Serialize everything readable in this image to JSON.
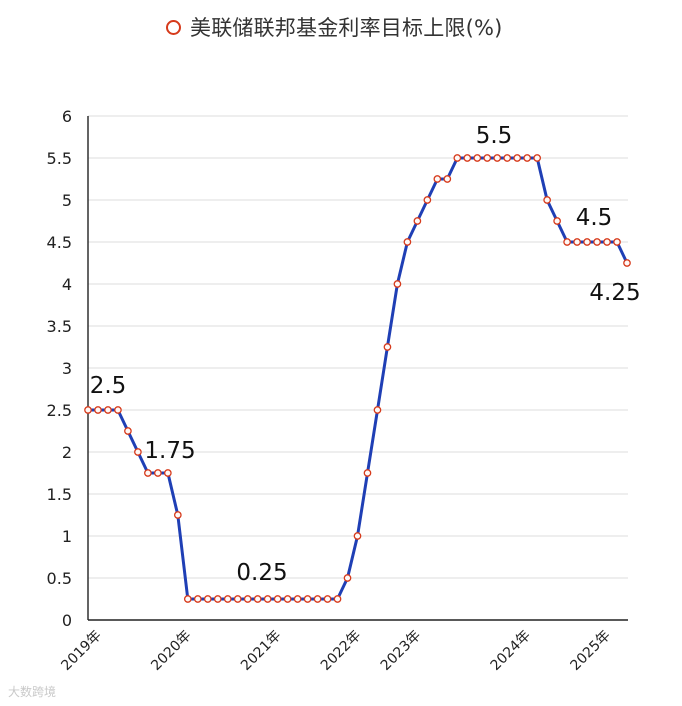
{
  "chart_data": {
    "type": "line",
    "title": "",
    "xlabel": "",
    "ylabel": "",
    "ylim": [
      0,
      6
    ],
    "yticks": [
      "0",
      "0.5",
      "1",
      "1.5",
      "2",
      "2.5",
      "3",
      "3.5",
      "4",
      "4.5",
      "5",
      "5.5",
      "6"
    ],
    "xticks": [
      "2019年",
      "2020年",
      "2021年",
      "2022年",
      "2023年",
      "2024年",
      "2025年"
    ],
    "grid": "horizontal",
    "legend_placement": "top",
    "line_color": "#1f3fb5",
    "marker_color": "#d63a1b",
    "series": [
      {
        "name": "美联储联邦基金利率目标上限(%)",
        "values": [
          2.5,
          2.5,
          2.5,
          2.5,
          2.25,
          2.0,
          1.75,
          1.75,
          1.75,
          1.25,
          0.25,
          0.25,
          0.25,
          0.25,
          0.25,
          0.25,
          0.25,
          0.25,
          0.25,
          0.25,
          0.25,
          0.25,
          0.25,
          0.25,
          0.25,
          0.25,
          0.5,
          1.0,
          1.75,
          2.5,
          3.25,
          4.0,
          4.5,
          4.75,
          5.0,
          5.25,
          5.25,
          5.5,
          5.5,
          5.5,
          5.5,
          5.5,
          5.5,
          5.5,
          5.5,
          5.5,
          5.0,
          4.75,
          4.5,
          4.5,
          4.5,
          4.5,
          4.5,
          4.5,
          4.25
        ]
      }
    ],
    "annotations": [
      "2.5",
      "1.75",
      "0.25",
      "5.5",
      "4.5",
      "4.25"
    ]
  },
  "watermark": "大数跨境"
}
